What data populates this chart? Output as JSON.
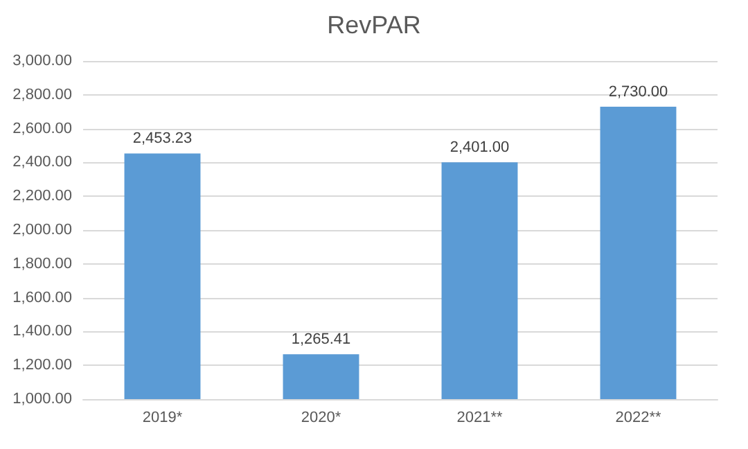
{
  "chart_data": {
    "type": "bar",
    "title": "RevPAR",
    "categories": [
      "2019*",
      "2020*",
      "2021**",
      "2022**"
    ],
    "values": [
      2453.23,
      1265.41,
      2401.0,
      2730.0
    ],
    "color": "#5b9bd5",
    "value_labels": [
      "2,453.23",
      "1,265.41",
      "2,401.00",
      "2,730.00"
    ],
    "ylim": [
      1000,
      3000
    ],
    "yticks": [
      {
        "value": 1000,
        "label": "1,000.00"
      },
      {
        "value": 1200,
        "label": "1,200.00"
      },
      {
        "value": 1400,
        "label": "1,400.00"
      },
      {
        "value": 1600,
        "label": "1,600.00"
      },
      {
        "value": 1800,
        "label": "1,800.00"
      },
      {
        "value": 2000,
        "label": "2,000.00"
      },
      {
        "value": 2200,
        "label": "2,200.00"
      },
      {
        "value": 2400,
        "label": "2,400.00"
      },
      {
        "value": 2600,
        "label": "2,600.00"
      },
      {
        "value": 2800,
        "label": "2,800.00"
      },
      {
        "value": 3000,
        "label": "3,000.00"
      }
    ],
    "grid": "y"
  }
}
